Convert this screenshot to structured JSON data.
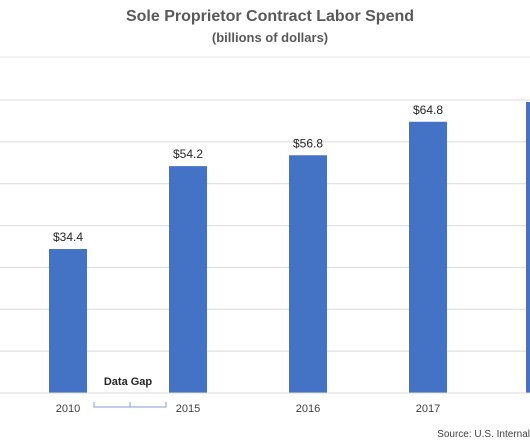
{
  "chart_data": {
    "type": "bar",
    "title": "Sole Proprietor Contract Labor Spend",
    "subtitle": "(billions of dollars)",
    "categories": [
      "2010",
      "2015",
      "2016",
      "2017"
    ],
    "values": [
      34.4,
      54.2,
      56.8,
      64.8
    ],
    "data_labels": [
      "$34.4",
      "$54.2",
      "$56.8",
      "$64.8"
    ],
    "xlabel": "",
    "ylabel": "",
    "ylim": [
      0,
      70
    ],
    "grid": true,
    "legend": "none",
    "bar_color": "#4472C4",
    "annotation": "Data Gap",
    "source": "Source: U.S. Internal"
  }
}
